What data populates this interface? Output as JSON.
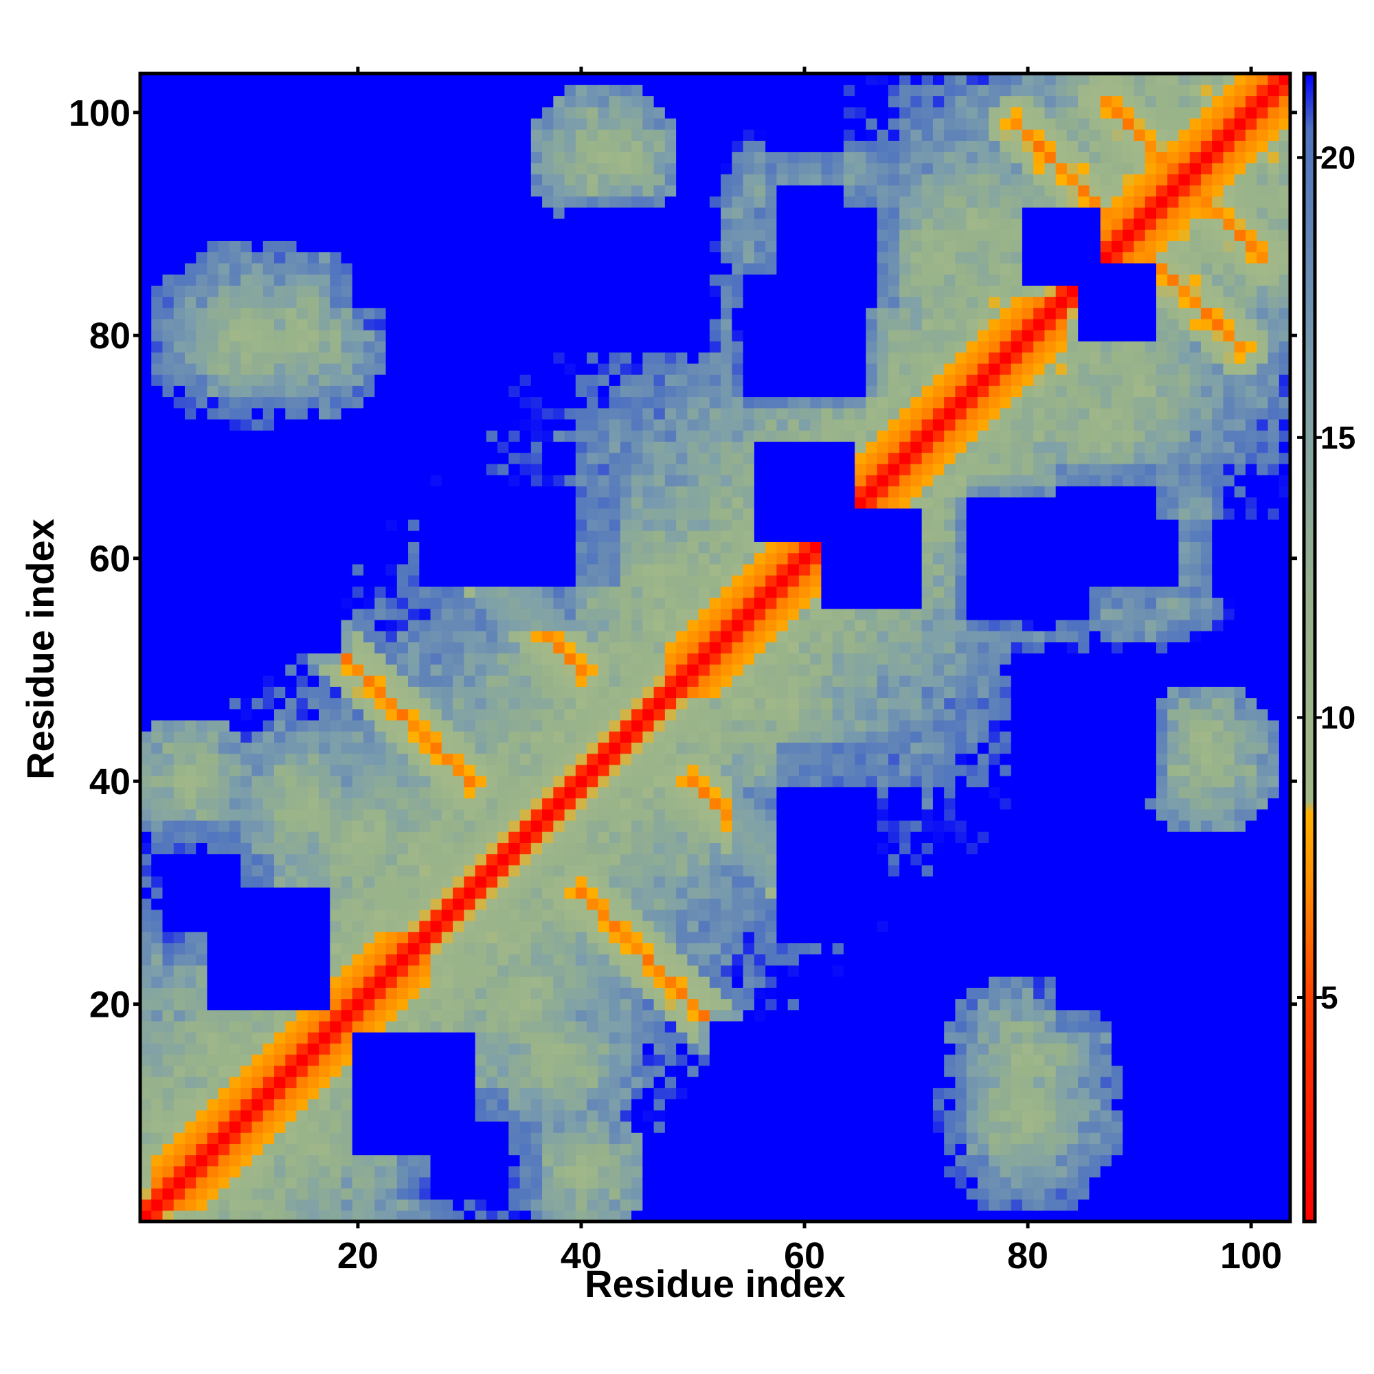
{
  "chart_data": {
    "type": "heatmap",
    "title": "",
    "xlabel": "Residue index",
    "ylabel": "Residue index",
    "xlim": [
      1,
      103
    ],
    "ylim": [
      1,
      103
    ],
    "x_ticks": [
      20,
      40,
      60,
      80,
      100
    ],
    "y_ticks": [
      20,
      40,
      60,
      80,
      100
    ],
    "colorbar": {
      "range": [
        1,
        21.5
      ],
      "ticks": [
        5,
        10,
        15,
        20
      ],
      "stops": [
        {
          "value": 1,
          "color": "#ff0000"
        },
        {
          "value": 5,
          "color": "#ff4000"
        },
        {
          "value": 7,
          "color": "#ff8c00"
        },
        {
          "value": 8.3,
          "color": "#ffb000"
        },
        {
          "value": 8.5,
          "color": "#a2b889"
        },
        {
          "value": 12,
          "color": "#97b28b"
        },
        {
          "value": 16,
          "color": "#7d9fab"
        },
        {
          "value": 20.5,
          "color": "#4f73c0"
        },
        {
          "value": 21.5,
          "color": "#0000ff"
        }
      ]
    },
    "n_residues": 103,
    "secondary_structure": {
      "helices": [
        [
          2,
          26
        ],
        [
          48,
          83
        ],
        [
          86,
          103
        ]
      ],
      "crossing_contacts": [
        {
          "a": 40,
          "b": 30,
          "dir": [
            1,
            -1
          ],
          "len": 15
        },
        {
          "a": 40,
          "b": 50,
          "dir": [
            -1,
            1
          ],
          "len": 12
        },
        {
          "a": 91,
          "b": 87,
          "dir": [
            1,
            -1
          ],
          "len": 9
        },
        {
          "a": 93,
          "b": 95,
          "dir": [
            -1,
            1
          ],
          "len": 7
        }
      ],
      "contact_clusters": [
        {
          "x": 75,
          "y": 90,
          "r": 8
        },
        {
          "x": 43,
          "y": 96,
          "r": 6
        },
        {
          "x": 60,
          "y": 92,
          "r": 8
        },
        {
          "x": 87,
          "y": 72,
          "r": 6
        },
        {
          "x": 90,
          "y": 60,
          "r": 8
        },
        {
          "x": 55,
          "y": 47,
          "r": 8
        },
        {
          "x": 47,
          "y": 58,
          "r": 6
        },
        {
          "x": 15,
          "y": 80,
          "r": 8
        },
        {
          "x": 5,
          "y": 40,
          "r": 6
        },
        {
          "x": 96,
          "y": 42,
          "r": 7
        },
        {
          "x": 80,
          "y": 10,
          "r": 9
        },
        {
          "x": 38,
          "y": 15,
          "r": 8
        },
        {
          "x": 20,
          "y": 35,
          "r": 7
        }
      ],
      "far_regions": [
        {
          "x": 10,
          "y": 60,
          "w": 18,
          "h": 16
        },
        {
          "x": 12,
          "y": 25,
          "w": 10,
          "h": 10
        },
        {
          "x": 25,
          "y": 88,
          "w": 14,
          "h": 10
        },
        {
          "x": 45,
          "y": 85,
          "w": 14,
          "h": 12
        },
        {
          "x": 83,
          "y": 88,
          "w": 6,
          "h": 6
        },
        {
          "x": 62,
          "y": 87,
          "w": 12,
          "h": 8
        },
        {
          "x": 80,
          "y": 60,
          "w": 10,
          "h": 12
        },
        {
          "x": 62,
          "y": 35,
          "w": 16,
          "h": 8
        },
        {
          "x": 65,
          "y": 10,
          "w": 18,
          "h": 12
        },
        {
          "x": 30,
          "y": 6,
          "w": 12,
          "h": 6
        },
        {
          "x": 100,
          "y": 60,
          "w": 6,
          "h": 16
        },
        {
          "x": 92,
          "y": 25,
          "w": 10,
          "h": 12
        },
        {
          "x": 30,
          "y": 62,
          "w": 8,
          "h": 8
        },
        {
          "x": 66,
          "y": 60,
          "w": 8,
          "h": 8
        }
      ]
    }
  }
}
